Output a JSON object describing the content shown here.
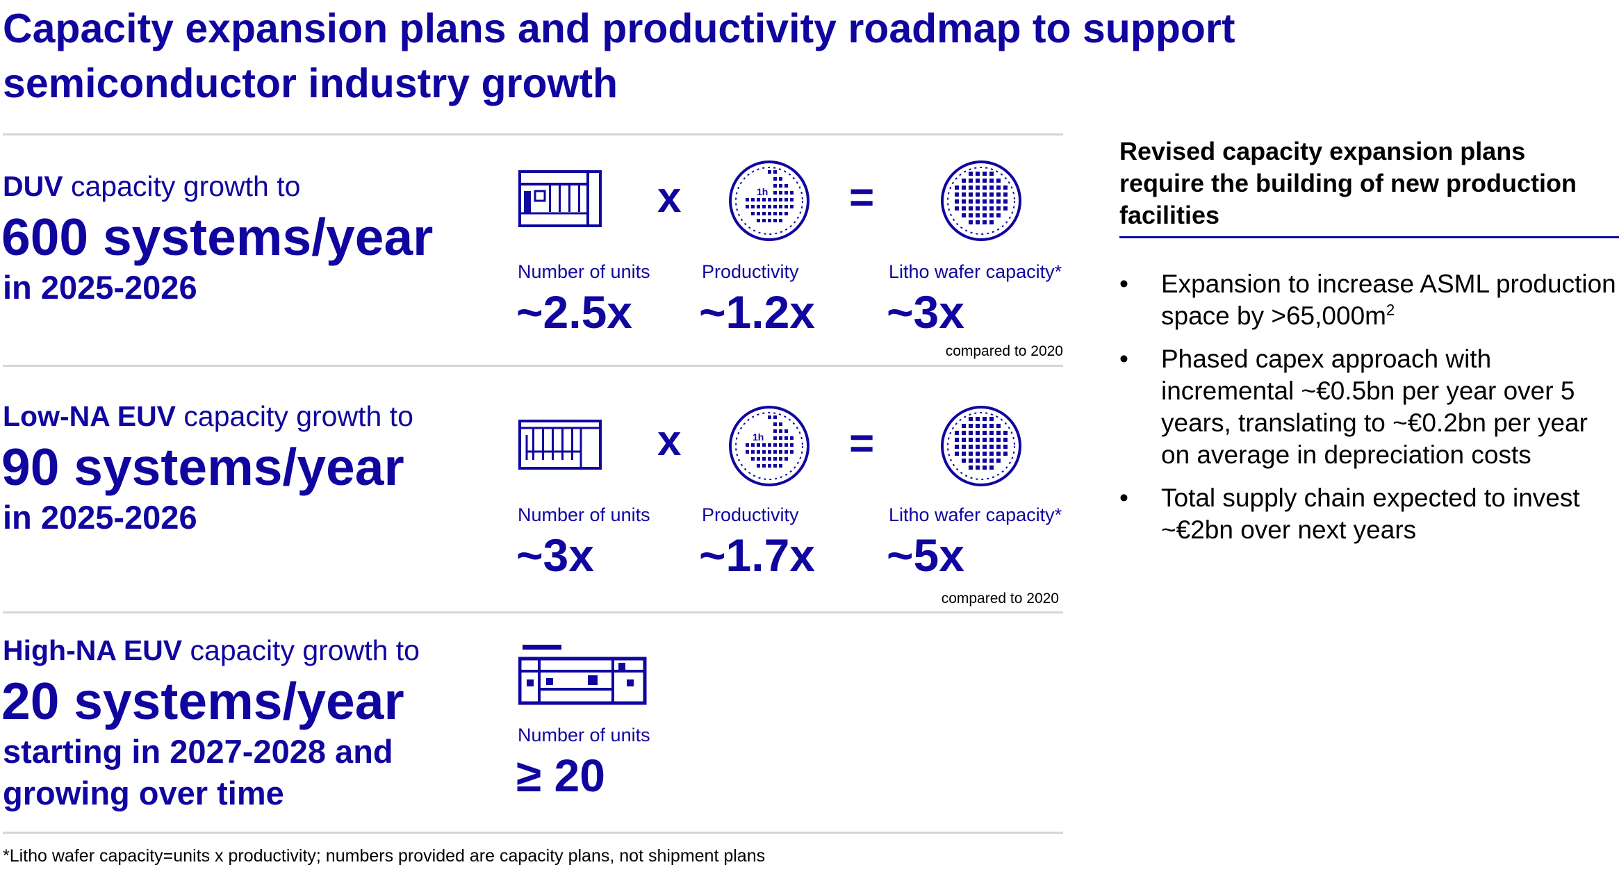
{
  "title": "Capacity expansion plans and productivity roadmap to support semiconductor industry growth",
  "sections": [
    {
      "name_bold": "DUV",
      "name_rest": " capacity growth to",
      "headline": "600 systems/year",
      "period": "in 2025-2026",
      "metrics": [
        {
          "label": "Number of units",
          "value": "~2.5x",
          "icon": "fab-building-icon"
        },
        {
          "label": "Productivity",
          "value": "~1.2x",
          "icon": "productivity-wafer-icon"
        },
        {
          "label": "Litho wafer capacity*",
          "value": "~3x",
          "icon": "wafer-grid-icon"
        }
      ],
      "operators": [
        "x",
        "="
      ],
      "wafer_badge": "1h",
      "note": "compared to 2020"
    },
    {
      "name_bold": "Low-NA EUV",
      "name_rest": " capacity growth to",
      "headline": "90 systems/year",
      "period": "in 2025-2026",
      "metrics": [
        {
          "label": "Number of units",
          "value": "~3x",
          "icon": "fab-building-icon"
        },
        {
          "label": "Productivity",
          "value": "~1.7x",
          "icon": "productivity-wafer-icon"
        },
        {
          "label": "Litho wafer capacity*",
          "value": "~5x",
          "icon": "wafer-grid-icon"
        }
      ],
      "operators": [
        "x",
        "="
      ],
      "wafer_badge": "1h",
      "note": "compared to 2020"
    },
    {
      "name_bold": "High-NA EUV",
      "name_rest": " capacity growth to",
      "headline": "20 systems/year",
      "period_line1": "starting in 2027-2028 and",
      "period_line2": "growing over time",
      "metrics": [
        {
          "label": "Number of units",
          "value": "≥ 20",
          "icon": "fab-building-icon"
        }
      ]
    }
  ],
  "footnote": "*Litho wafer capacity=units x productivity; numbers provided are capacity plans, not shipment plans",
  "right_panel": {
    "heading": "Revised capacity expansion plans require the building of new production facilities",
    "bullet_char": "•",
    "bullets": [
      {
        "text": "Expansion to increase ASML production space by >65,000m",
        "sup": "2"
      },
      {
        "text": "Phased capex approach with incremental ~€0.5bn per year over 5 years, translating to ~€0.2bn per year on average in depreciation costs"
      },
      {
        "text": "Total supply chain expected to invest ~€2bn over next years"
      }
    ]
  },
  "colors": {
    "brand": "#10069f",
    "rule": "#d6d6d6",
    "text": "#000000"
  }
}
